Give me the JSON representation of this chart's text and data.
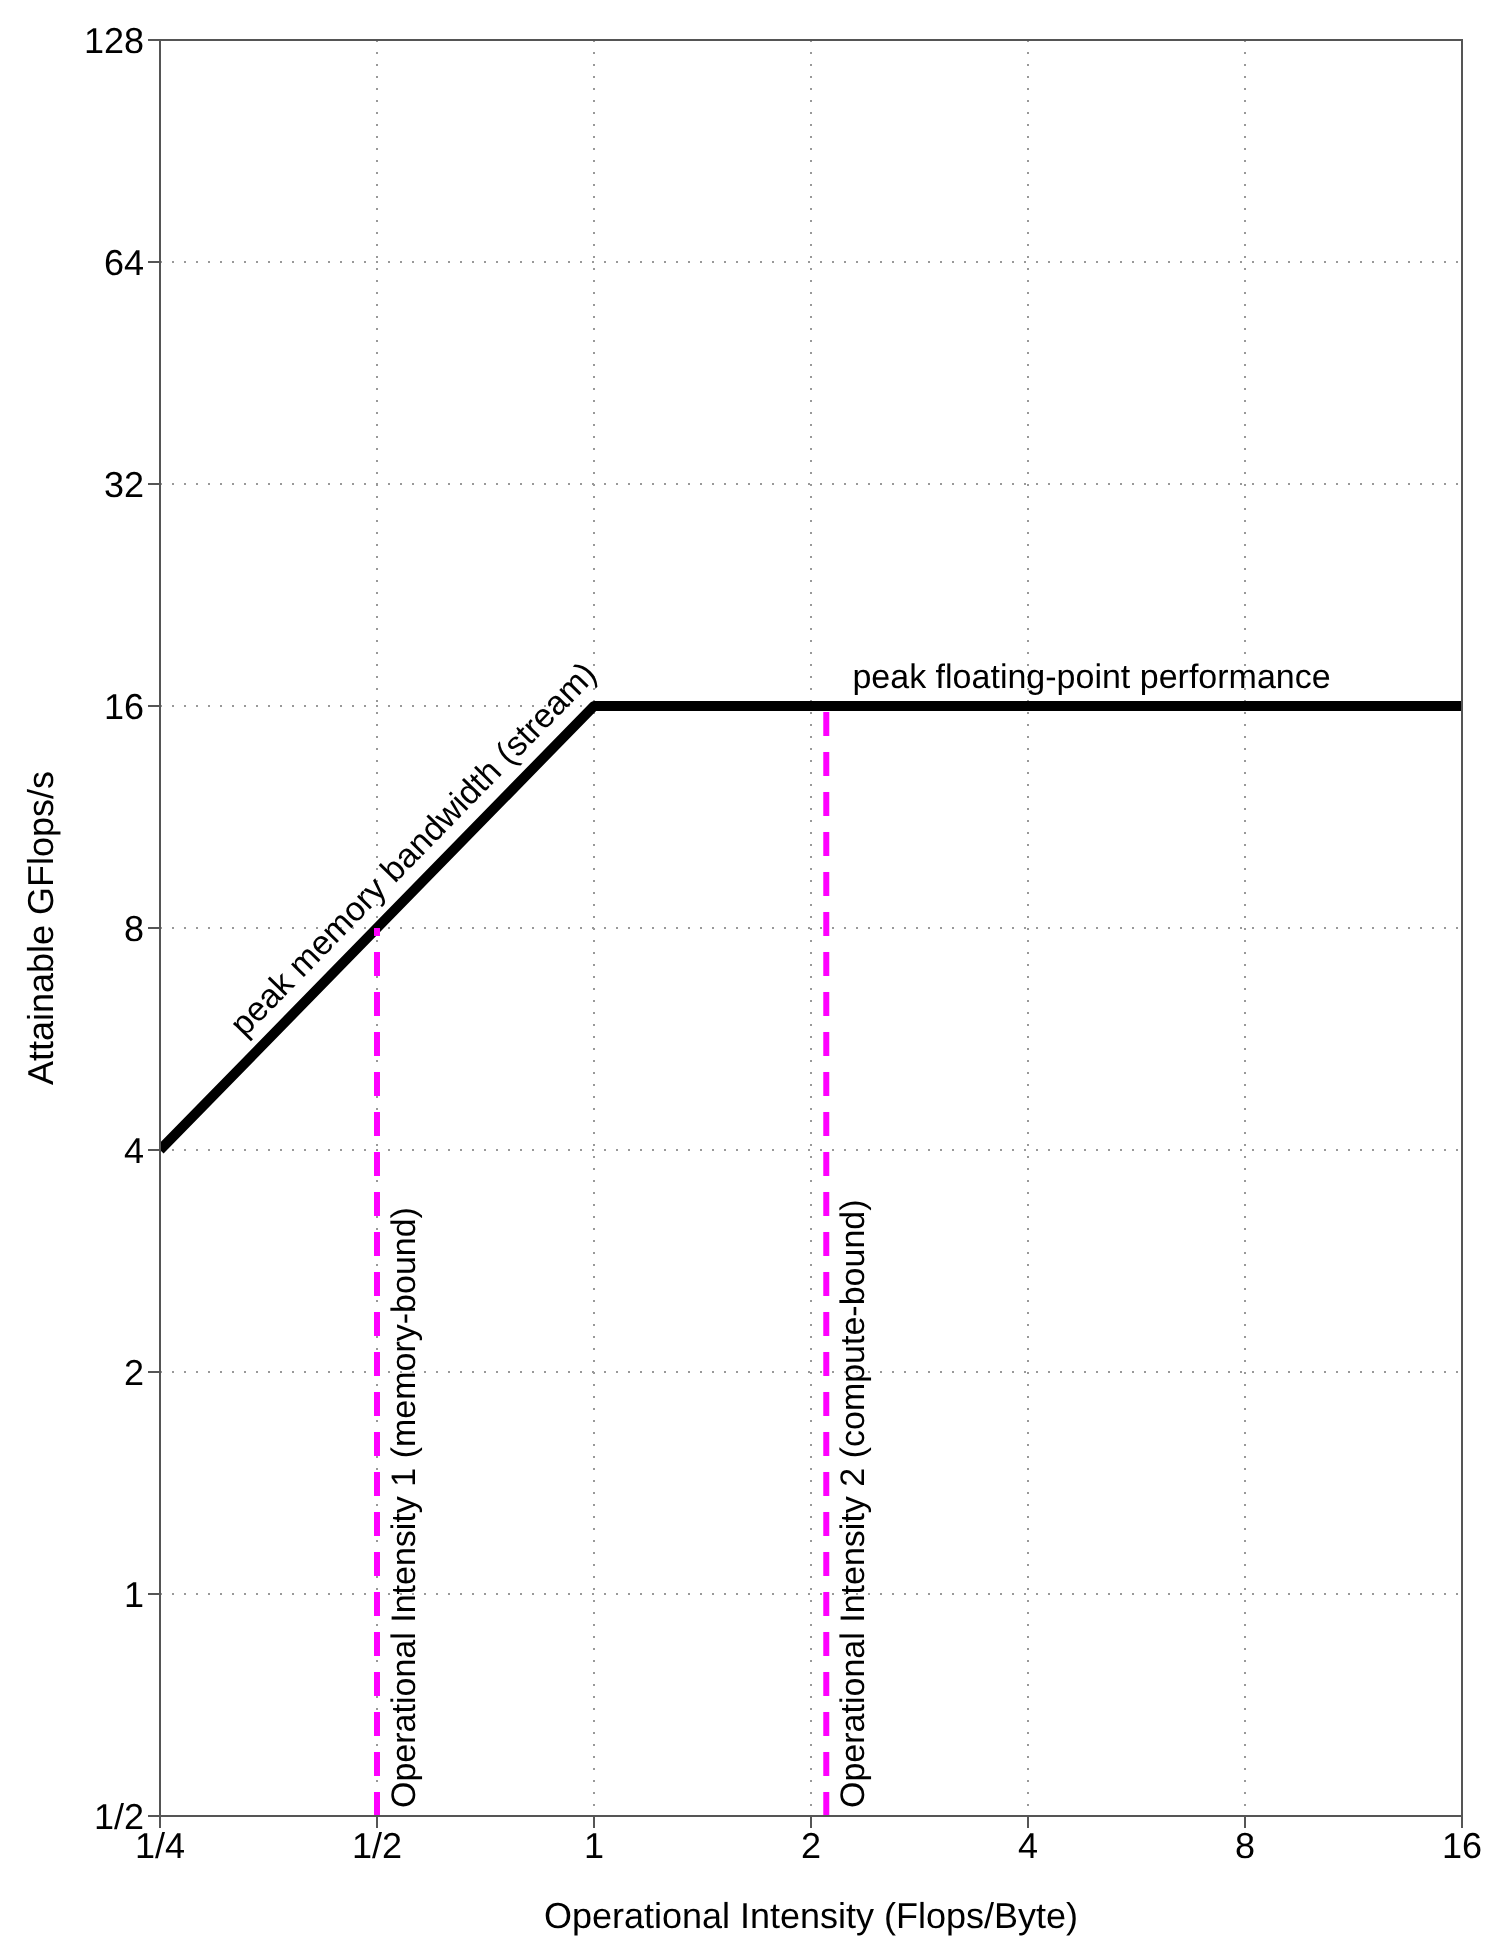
{
  "chart_data": {
    "type": "line",
    "xlabel": "Operational Intensity (Flops/Byte)",
    "ylabel": "Attainable GFlops/s",
    "log": "xy",
    "grid": true,
    "xlim": [
      0.25,
      16
    ],
    "xticks": [
      {
        "value": 0.25,
        "label": "1/4"
      },
      {
        "value": 0.5,
        "label": "1/2"
      },
      1,
      2,
      4,
      8,
      16
    ],
    "ylim": [
      0.5,
      128
    ],
    "yticks": [
      {
        "value": 0.5,
        "label": "1/2"
      },
      1,
      2,
      4,
      8,
      16,
      32,
      64,
      128
    ],
    "series": [
      {
        "x": [
          0.25,
          1,
          16
        ],
        "values": [
          4,
          16,
          16
        ],
        "color": "#000000",
        "line_style": "solid"
      },
      {
        "x": [
          0.5,
          0.5
        ],
        "values": [
          0.5,
          8
        ],
        "color": "#ff00ff",
        "line_style": "dashed"
      },
      {
        "x": [
          2.1,
          2.1
        ],
        "values": [
          0.5,
          16
        ],
        "color": "#ff00ff",
        "line_style": "dashed"
      }
    ],
    "annotations": [
      {
        "text": "peak memory bandwidth (stream)",
        "x": 0.6,
        "y": 9.6
      },
      {
        "text": "peak floating-point performance",
        "x": 4.9,
        "y": 16
      },
      {
        "text": "Operational Intensity 1 (memory-bound)",
        "x": 0.5,
        "y": 0.5
      },
      {
        "text": "Operational Intensity 2 (compute-bound)",
        "x": 2.1,
        "y": 0.5
      }
    ]
  }
}
